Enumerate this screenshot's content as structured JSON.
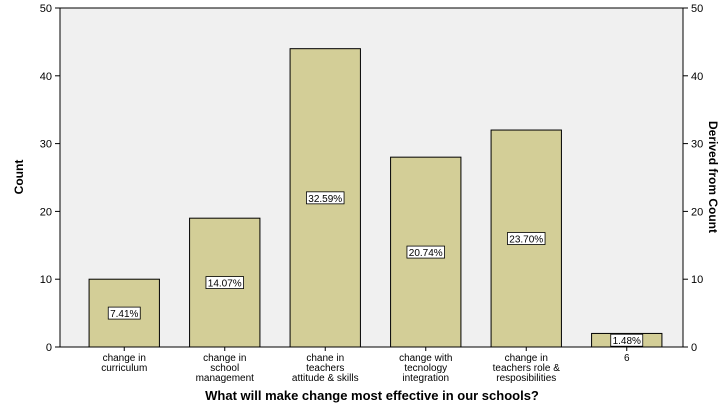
{
  "chart_data": {
    "type": "bar",
    "categories": [
      [
        "change in",
        "curriculum"
      ],
      [
        "change in",
        "school",
        "management"
      ],
      [
        "chane in",
        "teachers",
        "attitude & skills"
      ],
      [
        "change with",
        "tecnology",
        "integration"
      ],
      [
        "change in",
        "teachers role &",
        "resposibilities"
      ],
      [
        "6"
      ]
    ],
    "values": [
      10,
      19,
      44,
      28,
      32,
      2
    ],
    "data_labels": [
      "7.41%",
      "14.07%",
      "32.59%",
      "20.74%",
      "23.70%",
      "1.48%"
    ],
    "title": "",
    "xlabel": "What will make change most effective in our schools?",
    "ylabel": "Count",
    "y2label": "Derived from Count",
    "ylim": [
      0,
      50
    ],
    "yticks": [
      0,
      10,
      20,
      30,
      40,
      50
    ],
    "grid": false,
    "legend": "none",
    "colors": {
      "plot_background": "#F0F0F0",
      "bar_fill": "#D3CE97",
      "bar_stroke": "#000000",
      "label_box": "#FFFFFF"
    }
  }
}
